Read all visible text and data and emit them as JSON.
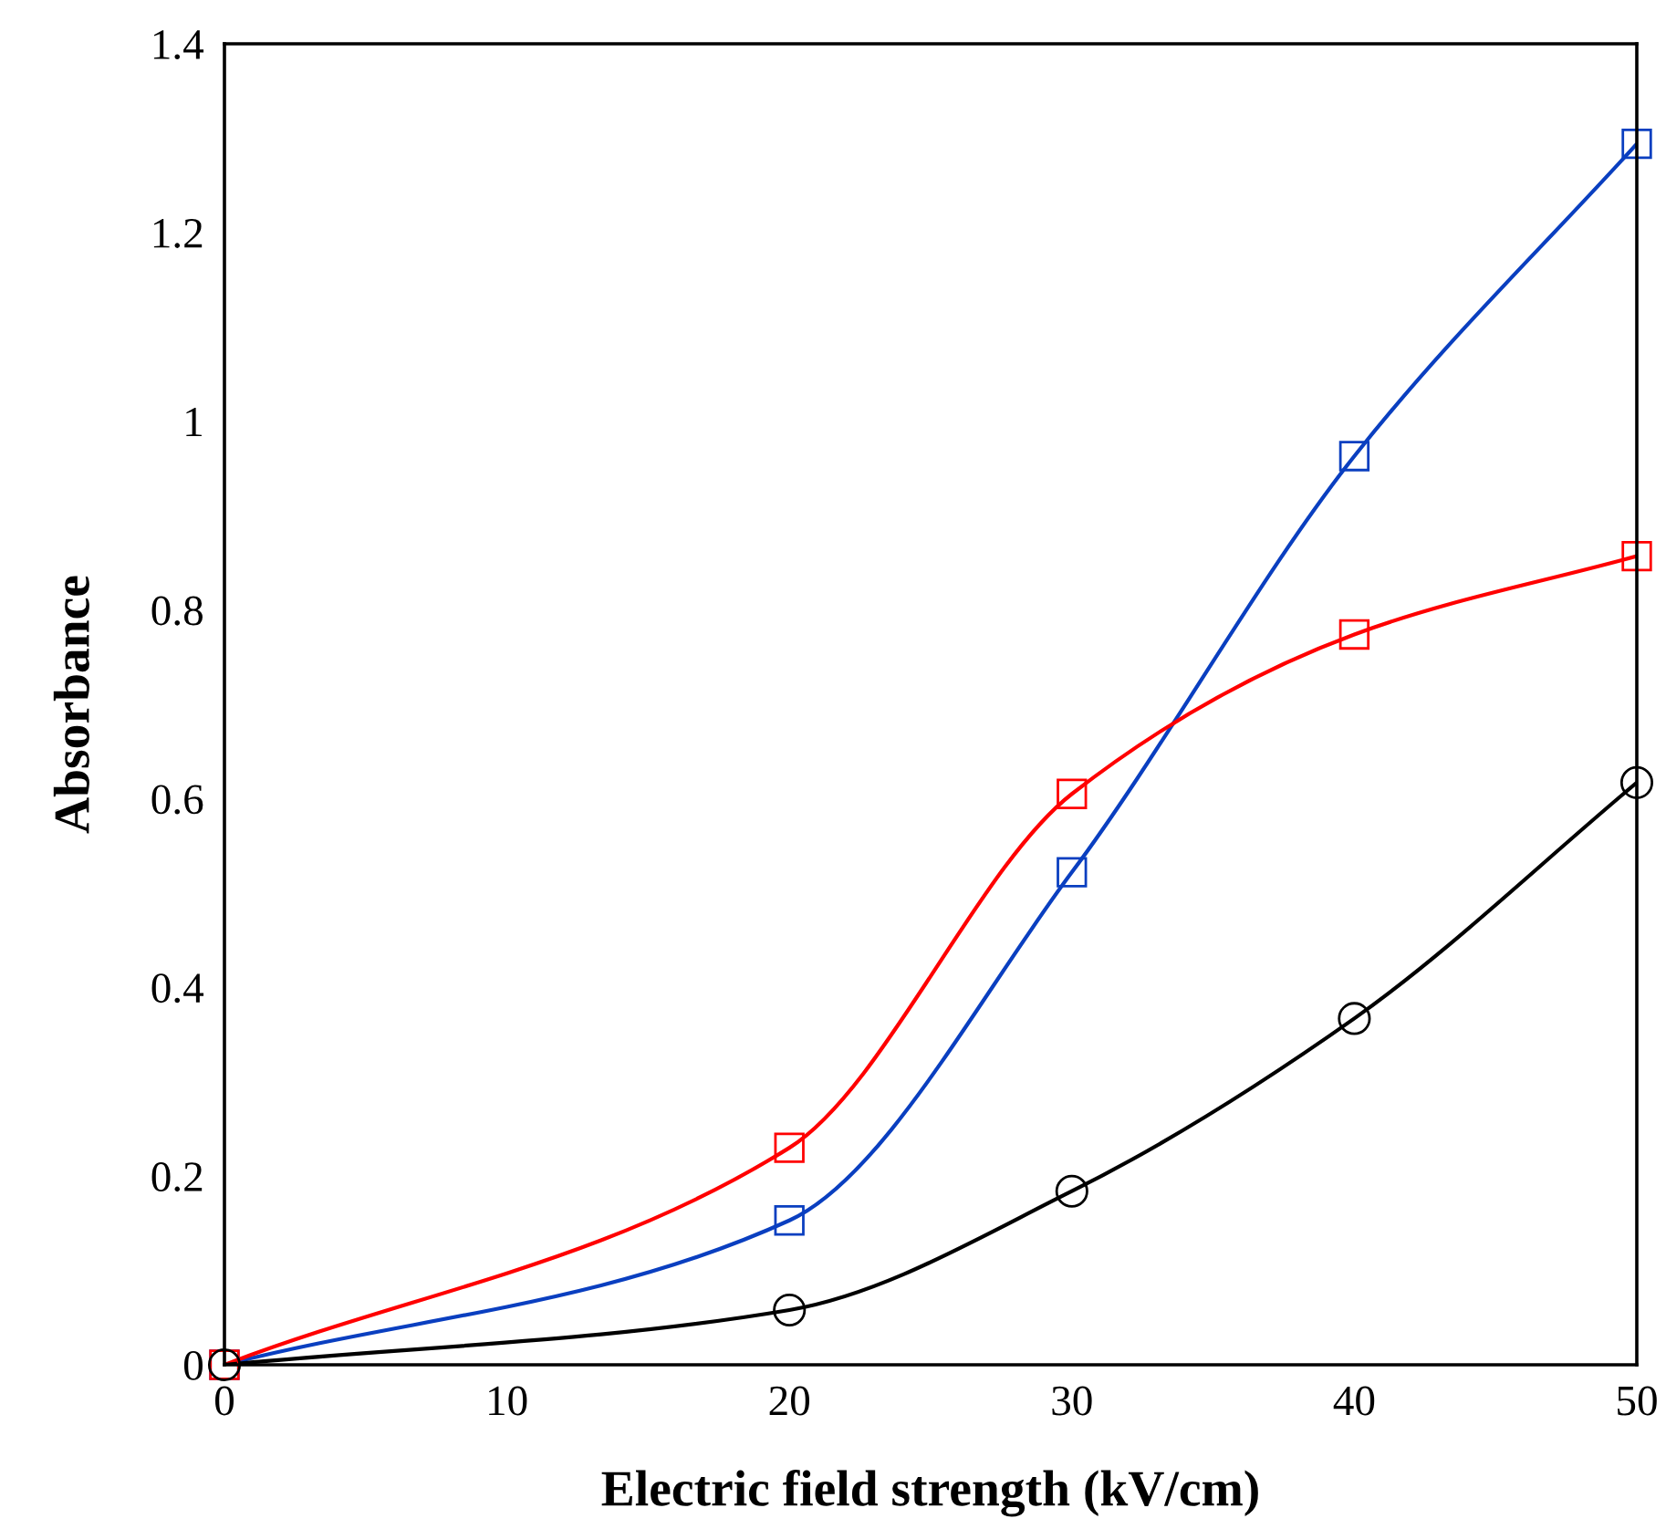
{
  "chart_data": {
    "type": "line",
    "xlabel": "Electric field strength (kV/cm)",
    "ylabel": "Absorbance",
    "x": [
      0,
      20,
      30,
      40,
      50
    ],
    "series": [
      {
        "color": "#0a3fc0",
        "marker": "square",
        "values": [
          0,
          0.153,
          0.522,
          0.963,
          1.294
        ]
      },
      {
        "color": "#ff0000",
        "marker": "square",
        "values": [
          0,
          0.23,
          0.605,
          0.774,
          0.857
        ]
      },
      {
        "color": "#000000",
        "marker": "circle",
        "values": [
          0,
          0.058,
          0.184,
          0.367,
          0.617
        ]
      }
    ],
    "xlim": [
      0,
      50
    ],
    "xticks": [
      0,
      10,
      20,
      30,
      40,
      50
    ],
    "ylim": [
      0,
      1.4
    ],
    "yticks": [
      0,
      {
        "value": 0.2,
        "label": "0.2"
      },
      {
        "value": 0.4,
        "label": "0.4"
      },
      {
        "value": 0.6,
        "label": "0.6"
      },
      {
        "value": 0.8,
        "label": "0.8"
      },
      1,
      {
        "value": 1.2,
        "label": "1.2"
      },
      {
        "value": 1.4,
        "label": "1.4"
      }
    ],
    "grid": false,
    "legend": false,
    "line_style": "solid"
  }
}
